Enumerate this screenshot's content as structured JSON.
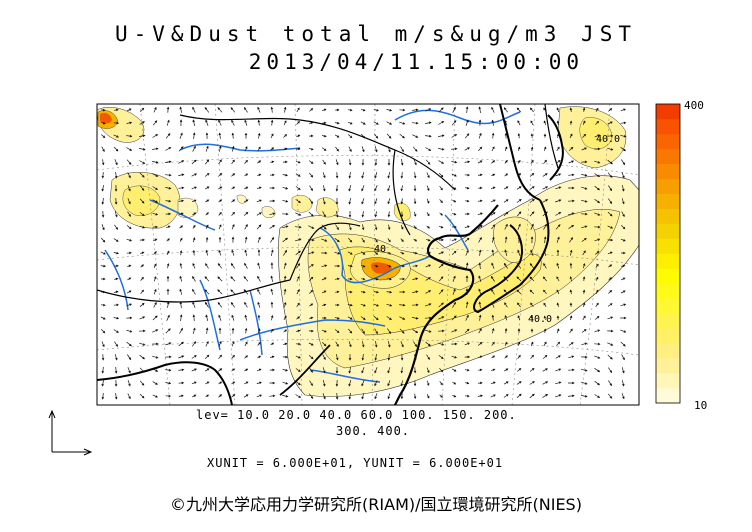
{
  "title": {
    "line1": "U-V&Dust total m/s&ug/m3 JST",
    "line2": "2013/04/11.15:00:00"
  },
  "levels": {
    "line1": "lev= 10.0 20.0 40.0 60.0 100. 150. 200.",
    "line2": "300. 400."
  },
  "units_text": "XUNIT = 6.000E+01, YUNIT = 6.000E+01",
  "colorbar": {
    "max_label": "400",
    "min_label": "10",
    "colors": [
      "#fffbd9",
      "#fff6b8",
      "#fff19a",
      "#ffee80",
      "#fff066",
      "#fff44d",
      "#fff833",
      "#fffa1a",
      "#fffb00",
      "#fcef00",
      "#f8e000",
      "#f4d100",
      "#f5c200",
      "#f6b000",
      "#f79e00",
      "#f88b00",
      "#f97800",
      "#f96500",
      "#f95200",
      "#f33d00"
    ]
  },
  "contour_labels": [
    "40",
    "40.0",
    "40.0"
  ],
  "credit": "©九州大学応用力学研究所(RIAM)/国立環境研究所(NIES)",
  "colors": {
    "coast": "#000000",
    "river": "#1f6fe0",
    "dust_light": "#fff6c0",
    "dust_mid": "#ffee70",
    "dust_high": "#f7b000",
    "dust_peak": "#f25a00"
  }
}
